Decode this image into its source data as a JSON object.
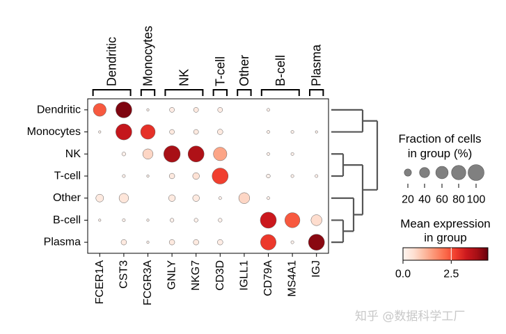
{
  "chart_data": {
    "type": "dotplot",
    "genes": [
      "FCER1A",
      "CST3",
      "FCGR3A",
      "GNLY",
      "NKG7",
      "CD3D",
      "IGLL1",
      "CD79A",
      "MS4A1",
      "IGJ"
    ],
    "groups": [
      "Dendritic",
      "Monocytes",
      "NK",
      "T-cell",
      "Other",
      "B-cell",
      "Plasma"
    ],
    "gene_groups": [
      {
        "label": "Dendritic",
        "start": 0,
        "end": 1
      },
      {
        "label": "Monocytes",
        "start": 2,
        "end": 2
      },
      {
        "label": "NK",
        "start": 3,
        "end": 4
      },
      {
        "label": "T-cell",
        "start": 5,
        "end": 5
      },
      {
        "label": "Other",
        "start": 6,
        "end": 6
      },
      {
        "label": "B-cell",
        "start": 7,
        "end": 8
      },
      {
        "label": "Plasma",
        "start": 9,
        "end": 9
      }
    ],
    "fraction": [
      [
        55,
        85,
        2,
        8,
        8,
        8,
        0,
        3,
        0,
        0
      ],
      [
        2,
        85,
        70,
        8,
        8,
        10,
        0,
        3,
        3,
        2
      ],
      [
        0,
        5,
        35,
        90,
        85,
        60,
        0,
        3,
        3,
        0
      ],
      [
        0,
        3,
        2,
        10,
        15,
        85,
        0,
        5,
        3,
        3
      ],
      [
        20,
        30,
        0,
        15,
        15,
        3,
        40,
        3,
        0,
        0
      ],
      [
        2,
        3,
        2,
        5,
        5,
        5,
        0,
        85,
        75,
        40
      ],
      [
        0,
        10,
        2,
        10,
        10,
        10,
        0,
        80,
        3,
        85
      ]
    ],
    "expression": [
      [
        2.4,
        4.2,
        0.1,
        0.2,
        0.3,
        0.2,
        0.0,
        0.1,
        0.0,
        0.0
      ],
      [
        0.1,
        3.4,
        2.9,
        0.3,
        0.3,
        0.3,
        0.0,
        0.1,
        0.1,
        0.1
      ],
      [
        0.0,
        0.1,
        0.7,
        3.8,
        3.7,
        1.4,
        0.0,
        0.1,
        0.1,
        0.0
      ],
      [
        0.0,
        0.1,
        0.1,
        0.3,
        0.5,
        2.7,
        0.0,
        0.1,
        0.1,
        0.1
      ],
      [
        0.3,
        0.4,
        0.0,
        0.3,
        0.3,
        0.1,
        0.7,
        0.1,
        0.0,
        0.0
      ],
      [
        0.1,
        0.1,
        0.1,
        0.1,
        0.1,
        0.1,
        0.0,
        3.3,
        2.4,
        0.6
      ],
      [
        0.0,
        0.3,
        0.1,
        0.3,
        0.3,
        0.2,
        0.0,
        2.8,
        0.1,
        4.1
      ]
    ],
    "dendrogram": true,
    "size_legend": {
      "title_lines": [
        "Fraction of cells",
        "in group (%)"
      ],
      "values": [
        20,
        40,
        60,
        80,
        100
      ],
      "labels": [
        "20",
        "40",
        "60",
        "80",
        "100"
      ]
    },
    "color_legend": {
      "title_lines": [
        "Mean expression",
        "in group"
      ],
      "range": [
        0,
        4.4
      ],
      "ticks": [
        0.0,
        2.5
      ],
      "tick_labels": [
        "0.0",
        "2.5"
      ],
      "colormap": "Reds"
    }
  },
  "watermark": "知乎 @数据科学工厂"
}
